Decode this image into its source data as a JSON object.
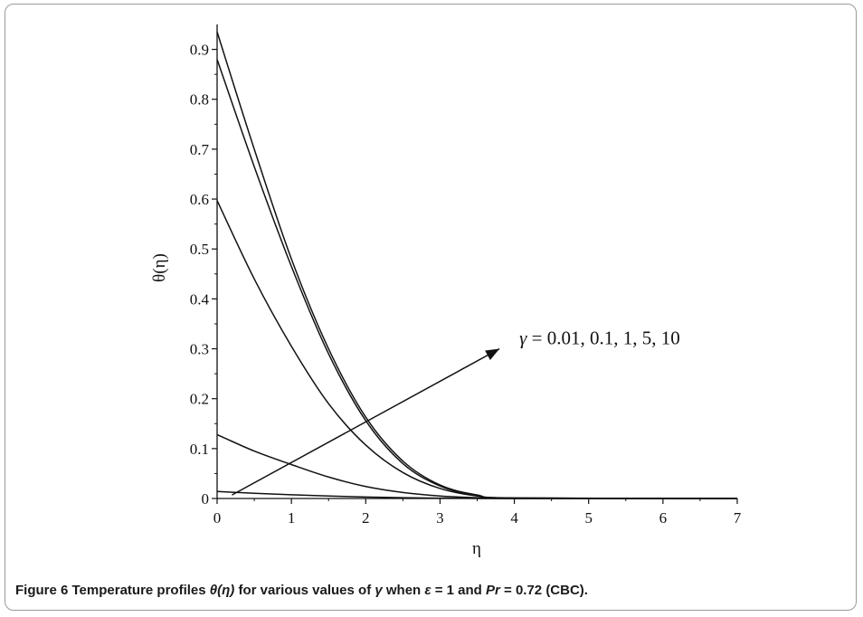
{
  "chart_data": {
    "type": "line",
    "xlabel": "η",
    "ylabel": "θ(η)",
    "xlim": [
      0,
      7
    ],
    "ylim": [
      0,
      0.95
    ],
    "x_ticks": [
      "0",
      "1",
      "2",
      "3",
      "4",
      "5",
      "6",
      "7"
    ],
    "y_ticks": [
      "0",
      "0.1",
      "0.2",
      "0.3",
      "0.4",
      "0.5",
      "0.6",
      "0.7",
      "0.8",
      "0.9"
    ],
    "grid": false,
    "series": [
      {
        "gamma": 0.01,
        "x": [
          0,
          0.5,
          1,
          1.5,
          2,
          2.5,
          3,
          3.5,
          4,
          7
        ],
        "values": [
          0.014,
          0.0105,
          0.0075,
          0.005,
          0.003,
          0.0015,
          0.0007,
          0.0002,
          0,
          0
        ]
      },
      {
        "gamma": 0.1,
        "x": [
          0,
          0.5,
          1,
          1.5,
          2,
          2.5,
          3,
          3.5,
          4,
          7
        ],
        "values": [
          0.128,
          0.095,
          0.068,
          0.043,
          0.024,
          0.012,
          0.005,
          0.0015,
          0,
          0
        ]
      },
      {
        "gamma": 1,
        "x": [
          0,
          0.5,
          1,
          1.5,
          2,
          2.5,
          3,
          3.5,
          4,
          7
        ],
        "values": [
          0.597,
          0.44,
          0.305,
          0.19,
          0.107,
          0.052,
          0.02,
          0.005,
          0.001,
          0
        ]
      },
      {
        "gamma": 5,
        "x": [
          0,
          0.5,
          1,
          1.5,
          2,
          2.5,
          3,
          3.5,
          4,
          7
        ],
        "values": [
          0.88,
          0.665,
          0.465,
          0.29,
          0.156,
          0.07,
          0.025,
          0.006,
          0.001,
          0
        ]
      },
      {
        "gamma": 10,
        "x": [
          0,
          0.5,
          1,
          1.5,
          2,
          2.5,
          3,
          3.5,
          4,
          7
        ],
        "values": [
          0.935,
          0.7,
          0.48,
          0.3,
          0.163,
          0.075,
          0.027,
          0.007,
          0.001,
          0
        ]
      }
    ],
    "annotation": {
      "symbol": "γ",
      "text": " = 0.01, 0.1, 1, 5, 10",
      "arrow_from": [
        0.2,
        0.007
      ],
      "arrow_to": [
        3.8,
        0.3
      ]
    }
  },
  "caption": {
    "prefix": "Figure 6  Temperature profiles ",
    "theta": "θ(η)",
    "mid1": " for various values of ",
    "gamma": "γ",
    "mid2": " when ",
    "eps": "ε",
    "mid3": " = 1 and ",
    "pr": "Pr",
    "suffix": " = 0.72 (CBC)."
  }
}
